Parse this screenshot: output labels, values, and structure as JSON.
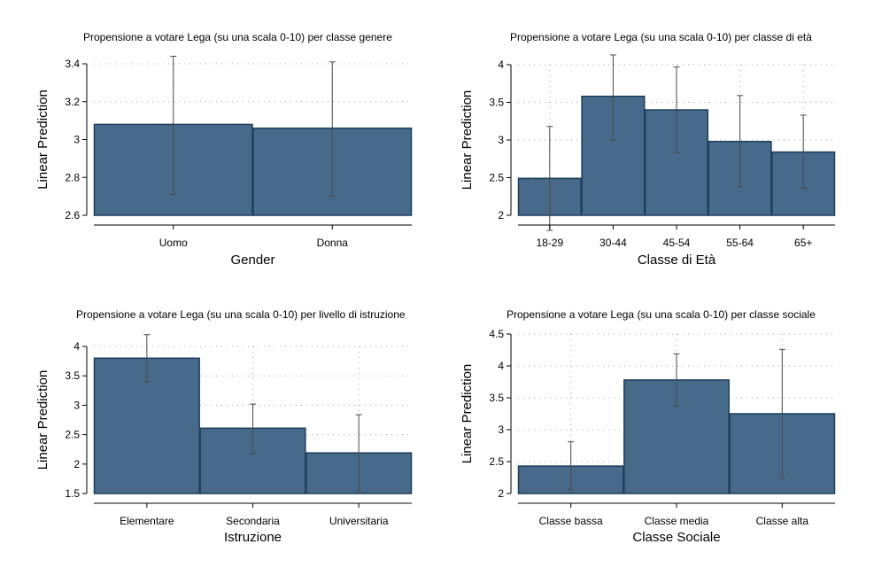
{
  "colors": {
    "bar_fill": "#476a8b",
    "bar_stroke": "#1f3d5c",
    "errorbar": "#4a4a4a",
    "grid": "#a0a0a0",
    "axis": "#000000"
  },
  "chart_data": [
    {
      "type": "bar",
      "title": "Propensione a votare Lega (su una scala 0-10) per classe genere",
      "xlabel": "Gender",
      "ylabel": "Linear Prediction",
      "categories": [
        "Uomo",
        "Donna"
      ],
      "values": [
        3.08,
        3.06
      ],
      "ci_low": [
        2.71,
        2.7
      ],
      "ci_high": [
        3.44,
        3.41
      ],
      "ylim": [
        2.6,
        3.4
      ],
      "yticks": [
        2.6,
        2.8,
        3,
        3.2,
        3.4
      ],
      "ytick_labels": [
        "2.6",
        "2.8",
        "3",
        "3.2",
        "3.4"
      ],
      "grid": true
    },
    {
      "type": "bar",
      "title": "Propensione a votare Lega (su una scala 0-10) per classe di età",
      "xlabel": "Classe di Età",
      "ylabel": "Linear Prediction",
      "categories": [
        "18-29",
        "30-44",
        "45-54",
        "55-64",
        "65+"
      ],
      "values": [
        2.49,
        3.58,
        3.4,
        2.98,
        2.84
      ],
      "ci_low": [
        1.8,
        3.0,
        2.83,
        2.38,
        2.36
      ],
      "ci_high": [
        3.18,
        4.13,
        3.97,
        3.59,
        3.33
      ],
      "ylim": [
        2,
        4
      ],
      "yticks": [
        2,
        2.5,
        3,
        3.5,
        4
      ],
      "ytick_labels": [
        "2",
        "2.5",
        "3",
        "3.5",
        "4"
      ],
      "grid": true
    },
    {
      "type": "bar",
      "title": "Propensione a votare Lega (su una scala 0-10) per livello di istruzione",
      "xlabel": "Istruzione",
      "ylabel": "Linear Prediction",
      "categories": [
        "Elementare",
        "Secondaria",
        "Universitaria"
      ],
      "values": [
        3.8,
        2.61,
        2.19
      ],
      "ci_low": [
        3.4,
        2.18,
        1.55
      ],
      "ci_high": [
        4.2,
        3.02,
        2.84
      ],
      "ylim": [
        1.5,
        4
      ],
      "yticks": [
        1.5,
        2,
        2.5,
        3,
        3.5,
        4
      ],
      "ytick_labels": [
        "1.5",
        "2",
        "2.5",
        "3",
        "3.5",
        "4"
      ],
      "grid": true
    },
    {
      "type": "bar",
      "title": "Propensione a votare Lega (su una scala 0-10) per classe sociale",
      "xlabel": "Classe Sociale",
      "ylabel": "Linear Prediction",
      "categories": [
        "Classe bassa",
        "Classe media",
        "Classe alta"
      ],
      "values": [
        2.43,
        3.78,
        3.25
      ],
      "ci_low": [
        2.06,
        3.37,
        2.24
      ],
      "ci_high": [
        2.81,
        4.19,
        4.26
      ],
      "ylim": [
        2,
        4.5
      ],
      "yticks": [
        2,
        2.5,
        3,
        3.5,
        4,
        4.5
      ],
      "ytick_labels": [
        "2",
        "2.5",
        "3",
        "3.5",
        "4",
        "4.5"
      ],
      "grid": true
    }
  ]
}
